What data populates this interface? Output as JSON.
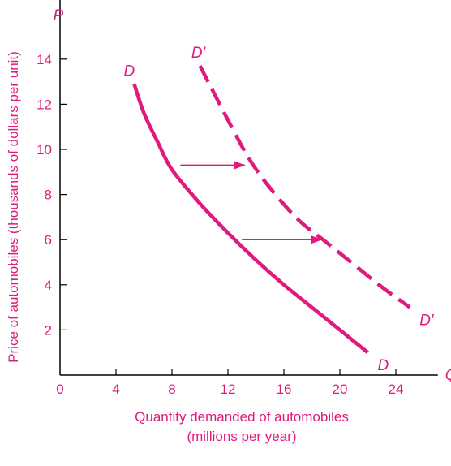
{
  "chart_data": {
    "type": "line",
    "xlabel_lines": [
      "Quantity demanded of automobiles",
      "(millions per year)"
    ],
    "ylabel": "Price of automobiles (thousands of dollars per unit)",
    "x_axis_symbol": "Q",
    "y_axis_symbol": "P",
    "xlim": [
      0,
      27
    ],
    "ylim": [
      0,
      16
    ],
    "x_ticks": [
      0,
      4,
      8,
      12,
      16,
      20,
      24
    ],
    "y_ticks": [
      2,
      4,
      6,
      8,
      10,
      12,
      14
    ],
    "grid": false,
    "series": [
      {
        "name": "D",
        "style": "solid",
        "color": "#e0197d",
        "label_start": "D",
        "label_end": "D",
        "points": [
          [
            5.3,
            12.9
          ],
          [
            6,
            11.6
          ],
          [
            7,
            10.3
          ],
          [
            8,
            9.1
          ],
          [
            10,
            7.6
          ],
          [
            12,
            6.3
          ],
          [
            14,
            5.1
          ],
          [
            16,
            4.0
          ],
          [
            18,
            3.0
          ],
          [
            20,
            2.0
          ],
          [
            22,
            1.0
          ]
        ]
      },
      {
        "name": "D′",
        "style": "dashed",
        "color": "#e0197d",
        "label_start": "D′",
        "label_end": "D′",
        "points": [
          [
            10,
            13.7
          ],
          [
            11,
            12.5
          ],
          [
            12,
            11.3
          ],
          [
            13.5,
            9.6
          ],
          [
            15,
            8.3
          ],
          [
            17,
            6.9
          ],
          [
            19,
            5.9
          ],
          [
            21,
            4.9
          ],
          [
            23,
            3.9
          ],
          [
            25,
            3.0
          ]
        ]
      }
    ],
    "arrows": [
      {
        "from": [
          8.6,
          9.3
        ],
        "to": [
          13.2,
          9.3
        ]
      },
      {
        "from": [
          13,
          6.0
        ],
        "to": [
          18.7,
          6.0
        ]
      }
    ]
  }
}
